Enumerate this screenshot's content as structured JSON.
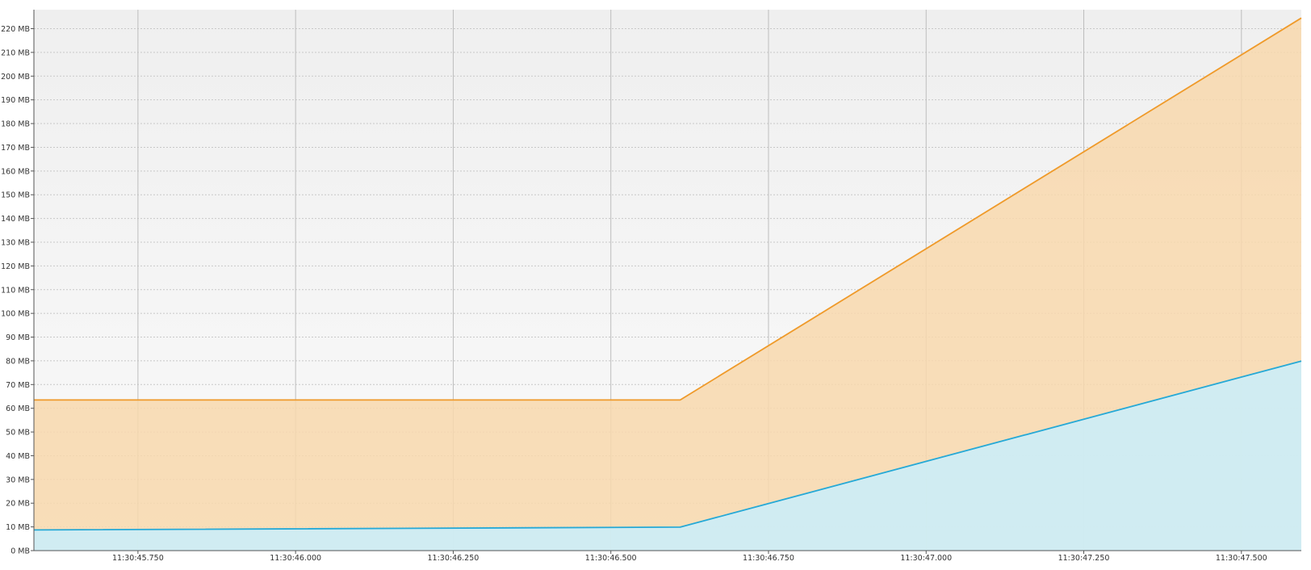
{
  "chart_data": {
    "type": "area",
    "x_tick_labels": [
      "11:30:45.750",
      "11:30:46.000",
      "11:30:46.250",
      "11:30:46.500",
      "11:30:46.750",
      "11:30:47.000",
      "11:30:47.250",
      "11:30:47.500"
    ],
    "x_tick_values_s": [
      45.75,
      46.0,
      46.25,
      46.5,
      46.75,
      47.0,
      47.25,
      47.5
    ],
    "xlim_s": [
      45.585,
      47.595
    ],
    "y_tick_labels": [
      "0 MB",
      "10 MB",
      "20 MB",
      "30 MB",
      "40 MB",
      "50 MB",
      "60 MB",
      "70 MB",
      "80 MB",
      "90 MB",
      "100 MB",
      "110 MB",
      "120 MB",
      "130 MB",
      "140 MB",
      "150 MB",
      "160 MB",
      "170 MB",
      "180 MB",
      "190 MB",
      "200 MB",
      "210 MB",
      "220 MB"
    ],
    "y_tick_values": [
      0,
      10,
      20,
      30,
      40,
      50,
      60,
      70,
      80,
      90,
      100,
      110,
      120,
      130,
      140,
      150,
      160,
      170,
      180,
      190,
      200,
      210,
      220
    ],
    "ylim": [
      0,
      228
    ],
    "grid": true,
    "series": [
      {
        "color": "#ef9a2a",
        "fill": "#f8d8ad",
        "x": [
          45.585,
          46.61,
          47.595
        ],
        "y": [
          63.5,
          63.5,
          224.5
        ]
      },
      {
        "color": "#26a9d6",
        "fill": "#c9eefb",
        "x": [
          45.585,
          46.61,
          47.595
        ],
        "y": [
          8.7,
          9.9,
          79.9
        ]
      }
    ]
  }
}
